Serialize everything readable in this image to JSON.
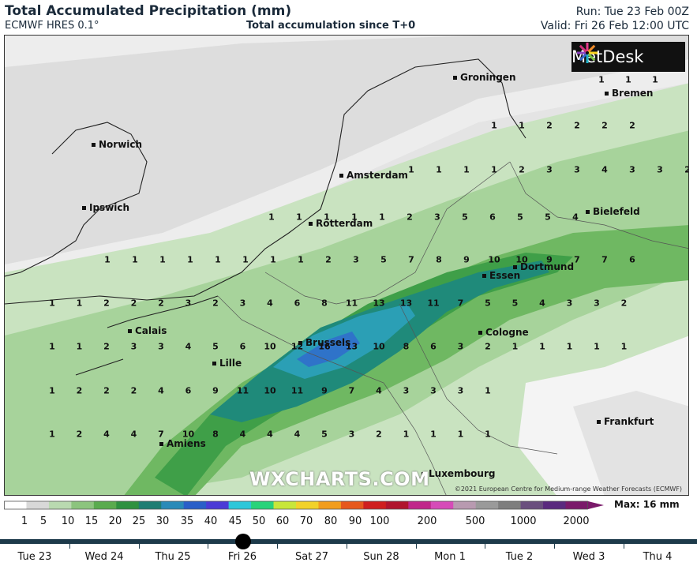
{
  "header": {
    "title": "Total Accumulated Precipitation (mm)",
    "model": "ECMWF HRES 0.1°",
    "subtitle": "Total accumulation since T+0",
    "run": "Run: Tue 23 Feb 00Z",
    "valid": "Valid: Fri 26 Feb 12:00 UTC"
  },
  "branding": {
    "metdesk": "MetDesk",
    "wxcharts": "WXCHARTS.COM",
    "copyright": "©2021 European Centre for Medium-range Weather Forecasts (ECMWF)"
  },
  "cities": [
    "Groningen",
    "Bremen",
    "Norwich",
    "Amsterdam",
    "Ipswich",
    "Rotterdam",
    "Bielefeld",
    "Dortmund",
    "Essen",
    "Calais",
    "Brussels",
    "Cologne",
    "Lille",
    "Frankfurt",
    "Amiens",
    "Luxembourg"
  ],
  "grid_values": [
    [
      1,
      1,
      1
    ],
    [
      1,
      1,
      2,
      2,
      2,
      2
    ],
    [
      1,
      1,
      1,
      1,
      2,
      3,
      3,
      4,
      3,
      3,
      2
    ],
    [
      1,
      1,
      1,
      1,
      1,
      2,
      3,
      5,
      6,
      5,
      5,
      4
    ],
    [
      1,
      1,
      1,
      1,
      1,
      1,
      1,
      1,
      2,
      3,
      5,
      7,
      8,
      9,
      10,
      10,
      9,
      7,
      7,
      6
    ],
    [
      1,
      1,
      2,
      2,
      2,
      3,
      2,
      3,
      4,
      6,
      8,
      11,
      13,
      13,
      11,
      7,
      5,
      5,
      4,
      3,
      3,
      2
    ],
    [
      1,
      1,
      2,
      3,
      3,
      4,
      5,
      6,
      10,
      12,
      16,
      13,
      10,
      8,
      6,
      3,
      2,
      1,
      1,
      1,
      1,
      1
    ],
    [
      1,
      2,
      2,
      2,
      4,
      6,
      9,
      11,
      10,
      11,
      9,
      7,
      4,
      3,
      3,
      3,
      1
    ],
    [
      1,
      2,
      4,
      4,
      7,
      10,
      8,
      4,
      4,
      4,
      5,
      3,
      2,
      1,
      1,
      1,
      1
    ]
  ],
  "scale": {
    "labels": [
      "1",
      "5",
      "10",
      "15",
      "20",
      "25",
      "30",
      "35",
      "40",
      "45",
      "50",
      "60",
      "70",
      "80",
      "90",
      "100",
      "200",
      "500",
      "1000",
      "2000"
    ],
    "colors": [
      "#ffffff",
      "#d8d8d8",
      "#b9d9b0",
      "#8cc47e",
      "#5aab4e",
      "#2e9140",
      "#1f7d73",
      "#2a8ab8",
      "#2a5fc8",
      "#4b3bd6",
      "#2ec7d9",
      "#29d37a",
      "#c8e63a",
      "#f2d22a",
      "#f29d1e",
      "#e6581d",
      "#cf1f1f",
      "#b0152e",
      "#c0278a",
      "#d64bb8",
      "#b89ab0",
      "#9a9a9a",
      "#7e7e7e",
      "#6a4f7e",
      "#5a2a7e",
      "#7a1a6a"
    ],
    "max": "Max: 16 mm"
  },
  "timeline": {
    "days": [
      "Tue 23",
      "Wed 24",
      "Thu 25",
      "Fri 26",
      "Sat 27",
      "Sun 28",
      "Mon 1",
      "Tue 2",
      "Wed 3",
      "Thu 4"
    ],
    "selected": "Fri 26"
  }
}
